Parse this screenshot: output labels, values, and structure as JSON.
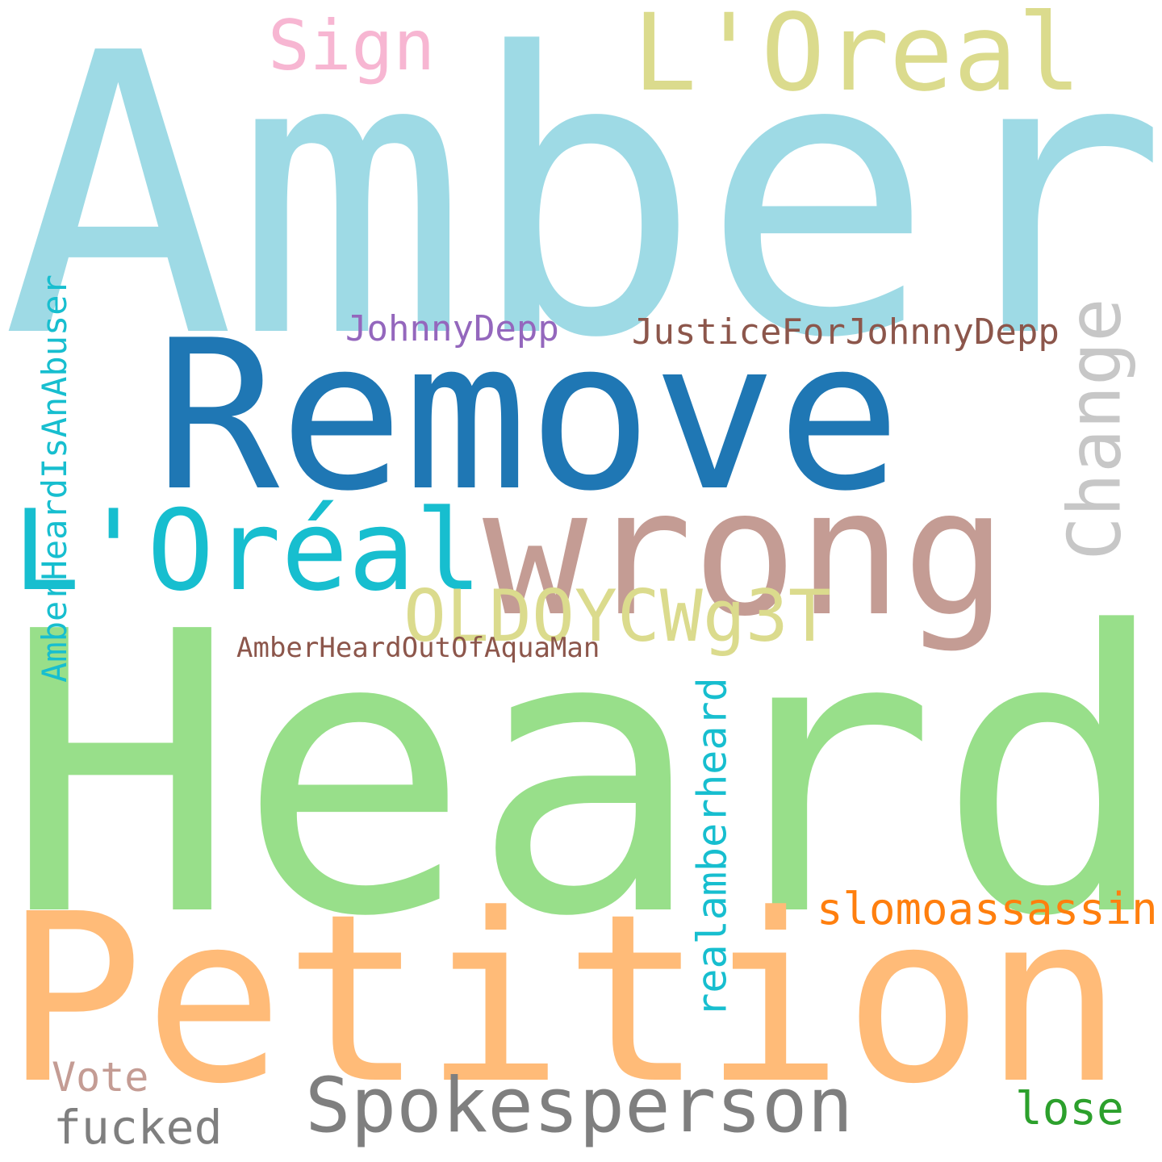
{
  "words": [
    {
      "text": "Amber",
      "color": "#9edae5",
      "rotate": false
    },
    {
      "text": "Heard",
      "color": "#98df8a",
      "rotate": false
    },
    {
      "text": "Petition",
      "color": "#ffbb78",
      "rotate": false
    },
    {
      "text": "Remove",
      "color": "#1f77b4",
      "rotate": false
    },
    {
      "text": "wrong",
      "color": "#c49c94",
      "rotate": false
    },
    {
      "text": "L'Oréal",
      "color": "#17becf",
      "rotate": false
    },
    {
      "text": "L'Oreal",
      "color": "#dbdb8d",
      "rotate": false
    },
    {
      "text": "Spokesperson",
      "color": "#7f7f7f",
      "rotate": false
    },
    {
      "text": "Change",
      "color": "#c7c7c7",
      "rotate": true
    },
    {
      "text": "OLDOYCWg3T",
      "color": "#dbdb8d",
      "rotate": false
    },
    {
      "text": "Sign",
      "color": "#f7b6d2",
      "rotate": false
    },
    {
      "text": "slomoassassin",
      "color": "#ff7f0e",
      "rotate": false
    },
    {
      "text": "realamberheard",
      "color": "#17becf",
      "rotate": true
    },
    {
      "text": "AmberHeardIsAnAbuser",
      "color": "#17becf",
      "rotate": true
    },
    {
      "text": "JusticeForJohnnyDepp",
      "color": "#8c564b",
      "rotate": false
    },
    {
      "text": "JohnnyDepp",
      "color": "#9467bd",
      "rotate": false
    },
    {
      "text": "AmberHeardOutOfAquaMan",
      "color": "#8c564b",
      "rotate": false
    },
    {
      "text": "Vote",
      "color": "#c49c94",
      "rotate": false
    },
    {
      "text": "fucked",
      "color": "#7f7f7f",
      "rotate": false
    },
    {
      "text": "lose",
      "color": "#2ca02c",
      "rotate": false
    }
  ]
}
